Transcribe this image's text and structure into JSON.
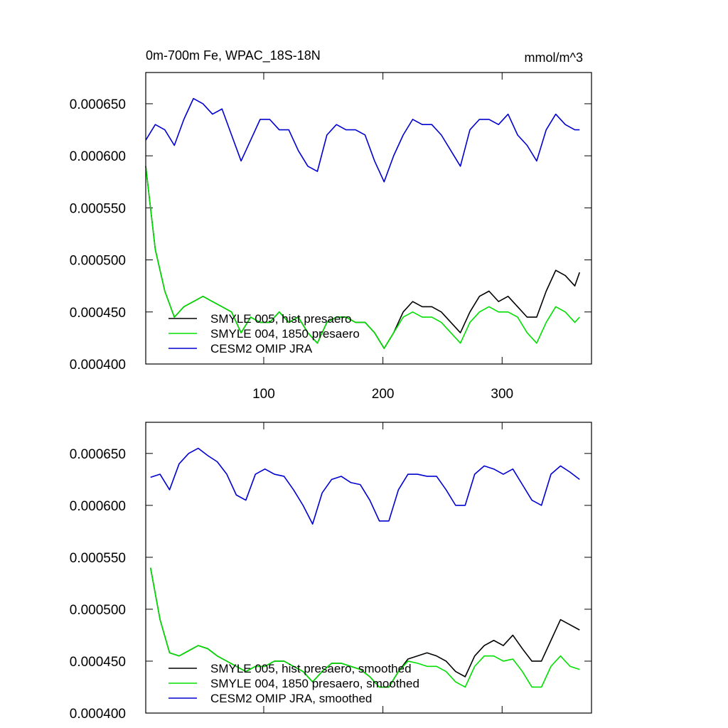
{
  "chart_data": [
    {
      "type": "line",
      "title": "0m-700m Fe, WPAC_18S-18N",
      "units": "mmol/m^3",
      "x": [
        1,
        9,
        17,
        25,
        33,
        41,
        49,
        57,
        65,
        73,
        81,
        89,
        97,
        105,
        113,
        121,
        129,
        137,
        145,
        153,
        161,
        169,
        177,
        185,
        193,
        201,
        209,
        217,
        225,
        233,
        241,
        249,
        257,
        265,
        273,
        281,
        289,
        297,
        305,
        313,
        321,
        329,
        337,
        345,
        353,
        361,
        365
      ],
      "xlim": [
        1,
        375
      ],
      "xticks": [
        100,
        200,
        300
      ],
      "ylim": [
        0.0004,
        0.00068
      ],
      "yticks": [
        {
          "value": 0.0004,
          "label": "0.000400"
        },
        {
          "value": 0.00045,
          "label": "0.000450"
        },
        {
          "value": 0.0005,
          "label": "0.000500"
        },
        {
          "value": 0.00055,
          "label": "0.000550"
        },
        {
          "value": 0.0006,
          "label": "0.000600"
        },
        {
          "value": 0.00065,
          "label": "0.000650"
        }
      ],
      "series": [
        {
          "name": "SMYLE 005, hist presaero",
          "color": "#000000",
          "values": [
            0.00059,
            0.00051,
            0.00047,
            0.000445,
            0.000455,
            0.00046,
            0.000465,
            0.00046,
            0.000455,
            0.00045,
            0.00043,
            0.000445,
            0.00044,
            0.00044,
            0.00045,
            0.00044,
            0.000445,
            0.00043,
            0.00042,
            0.00044,
            0.000445,
            0.000445,
            0.00044,
            0.00044,
            0.00043,
            0.000415,
            0.00043,
            0.00045,
            0.00046,
            0.000455,
            0.000455,
            0.00045,
            0.00044,
            0.00043,
            0.00045,
            0.000465,
            0.00047,
            0.00046,
            0.000465,
            0.000455,
            0.000445,
            0.000445,
            0.00047,
            0.00049,
            0.000485,
            0.000475,
            0.000488
          ]
        },
        {
          "name": "SMYLE 004, 1850 presaero",
          "color": "#00e000",
          "values": [
            0.00059,
            0.00051,
            0.00047,
            0.000445,
            0.000455,
            0.00046,
            0.000465,
            0.00046,
            0.000455,
            0.00045,
            0.00043,
            0.000445,
            0.00044,
            0.00044,
            0.00045,
            0.00044,
            0.000445,
            0.00043,
            0.00042,
            0.00044,
            0.000445,
            0.000445,
            0.00044,
            0.00044,
            0.00043,
            0.000415,
            0.00043,
            0.000445,
            0.00045,
            0.000445,
            0.000445,
            0.00044,
            0.00043,
            0.00042,
            0.00044,
            0.00045,
            0.000455,
            0.00045,
            0.00045,
            0.000445,
            0.00043,
            0.00042,
            0.00044,
            0.000455,
            0.00045,
            0.00044,
            0.000445
          ]
        },
        {
          "name": "CESM2 OMIP JRA",
          "color": "#0000d0",
          "values": [
            0.000615,
            0.00063,
            0.000625,
            0.00061,
            0.000635,
            0.000655,
            0.00065,
            0.00064,
            0.000645,
            0.00062,
            0.000595,
            0.000615,
            0.000635,
            0.000635,
            0.000625,
            0.000625,
            0.000605,
            0.00059,
            0.000585,
            0.00062,
            0.00063,
            0.000625,
            0.000625,
            0.00062,
            0.000595,
            0.000575,
            0.0006,
            0.00062,
            0.000635,
            0.00063,
            0.00063,
            0.00062,
            0.000605,
            0.00059,
            0.000625,
            0.000635,
            0.000635,
            0.00063,
            0.00064,
            0.00062,
            0.00061,
            0.000595,
            0.000625,
            0.00064,
            0.00063,
            0.000625,
            0.000625
          ]
        }
      ]
    },
    {
      "type": "line",
      "x": [
        5,
        13,
        21,
        29,
        37,
        45,
        53,
        61,
        69,
        77,
        85,
        93,
        101,
        109,
        117,
        125,
        133,
        141,
        149,
        157,
        165,
        173,
        181,
        189,
        197,
        205,
        213,
        221,
        229,
        237,
        245,
        253,
        261,
        269,
        277,
        285,
        293,
        301,
        309,
        317,
        325,
        333,
        341,
        349,
        357,
        365
      ],
      "xlim": [
        1,
        375
      ],
      "xticks": [
        100,
        200,
        300
      ],
      "ylim": [
        0.0004,
        0.00068
      ],
      "yticks": [
        {
          "value": 0.0004,
          "label": "0.000400"
        },
        {
          "value": 0.00045,
          "label": "0.000450"
        },
        {
          "value": 0.0005,
          "label": "0.000500"
        },
        {
          "value": 0.00055,
          "label": "0.000550"
        },
        {
          "value": 0.0006,
          "label": "0.000600"
        },
        {
          "value": 0.00065,
          "label": "0.000650"
        }
      ],
      "series": [
        {
          "name": "SMYLE 005, hist presaero, smoothed",
          "color": "#000000",
          "values": [
            0.00054,
            0.00049,
            0.000458,
            0.000455,
            0.00046,
            0.000465,
            0.000462,
            0.000455,
            0.00045,
            0.000445,
            0.00044,
            0.000445,
            0.000445,
            0.00045,
            0.00045,
            0.000445,
            0.00044,
            0.00043,
            0.00044,
            0.000448,
            0.000448,
            0.000445,
            0.000442,
            0.000435,
            0.000425,
            0.000425,
            0.00044,
            0.000452,
            0.000455,
            0.000458,
            0.000455,
            0.00045,
            0.00044,
            0.000435,
            0.000455,
            0.000465,
            0.00047,
            0.000465,
            0.000475,
            0.000462,
            0.00045,
            0.00045,
            0.00047,
            0.00049,
            0.000485,
            0.00048
          ]
        },
        {
          "name": "SMYLE 004, 1850 presaero, smoothed",
          "color": "#00e000",
          "values": [
            0.00054,
            0.00049,
            0.000458,
            0.000455,
            0.00046,
            0.000465,
            0.000462,
            0.000455,
            0.00045,
            0.000445,
            0.00044,
            0.000445,
            0.000445,
            0.00045,
            0.00045,
            0.000445,
            0.00044,
            0.00043,
            0.00044,
            0.000448,
            0.000448,
            0.000445,
            0.000442,
            0.000435,
            0.000425,
            0.000425,
            0.00044,
            0.00045,
            0.000448,
            0.000445,
            0.000445,
            0.00044,
            0.00043,
            0.000425,
            0.000445,
            0.000455,
            0.000455,
            0.00045,
            0.000452,
            0.00044,
            0.000425,
            0.000425,
            0.000445,
            0.000455,
            0.000445,
            0.000442
          ]
        },
        {
          "name": "CESM2 OMIP JRA, smoothed",
          "color": "#0000d0",
          "values": [
            0.000627,
            0.00063,
            0.000615,
            0.00064,
            0.00065,
            0.000655,
            0.000648,
            0.000642,
            0.00063,
            0.00061,
            0.000605,
            0.00063,
            0.000635,
            0.00063,
            0.000628,
            0.000615,
            0.0006,
            0.000582,
            0.000612,
            0.000625,
            0.000628,
            0.000622,
            0.00062,
            0.000605,
            0.000585,
            0.000585,
            0.000615,
            0.00063,
            0.00063,
            0.000628,
            0.000628,
            0.000615,
            0.0006,
            0.0006,
            0.00063,
            0.000638,
            0.000635,
            0.00063,
            0.000635,
            0.00062,
            0.000605,
            0.0006,
            0.00063,
            0.000638,
            0.000632,
            0.000625
          ]
        }
      ]
    }
  ]
}
